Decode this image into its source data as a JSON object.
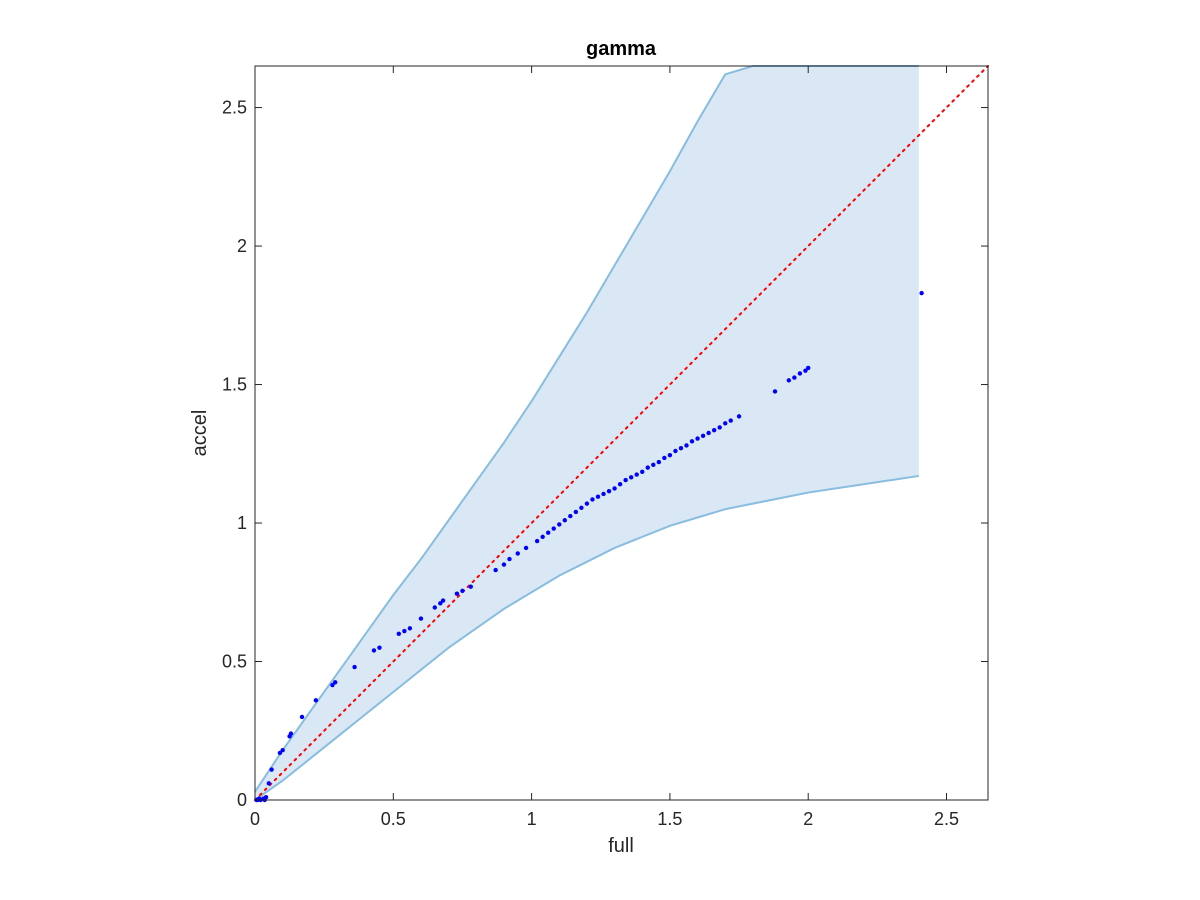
{
  "chart_data": {
    "type": "scatter",
    "title": "gamma",
    "xlabel": "full",
    "ylabel": "accel",
    "xlim": [
      0,
      2.65
    ],
    "ylim": [
      0,
      2.65
    ],
    "xticks": [
      0,
      0.5,
      1,
      1.5,
      2,
      2.5
    ],
    "yticks": [
      0,
      0.5,
      1,
      1.5,
      2,
      2.5
    ],
    "xtick_labels": [
      "0",
      "0.5",
      "1",
      "1.5",
      "2",
      "2.5"
    ],
    "ytick_labels": [
      "0",
      "0.5",
      "1",
      "1.5",
      "2",
      "2.5"
    ],
    "grid": false,
    "box": true,
    "reference_line": {
      "style": "dotted",
      "color": "#ff0000",
      "x": [
        0,
        2.65
      ],
      "y": [
        0,
        2.65
      ]
    },
    "band": {
      "color": "#d9e8f4",
      "edge_color": "#88bde0",
      "x": [
        0,
        0.1,
        0.2,
        0.3,
        0.4,
        0.5,
        0.6,
        0.7,
        0.8,
        0.9,
        1.0,
        1.1,
        1.2,
        1.3,
        1.4,
        1.5,
        1.6,
        1.7,
        1.8,
        1.9,
        2.0,
        2.1,
        2.2,
        2.3,
        2.4
      ],
      "upper": [
        0.03,
        0.18,
        0.32,
        0.46,
        0.6,
        0.74,
        0.87,
        1.01,
        1.15,
        1.29,
        1.44,
        1.6,
        1.76,
        1.93,
        2.1,
        2.27,
        2.45,
        2.62,
        2.65,
        2.65,
        2.65,
        2.65,
        2.65,
        2.65,
        2.65
      ],
      "lower": [
        0.0,
        0.07,
        0.15,
        0.23,
        0.31,
        0.39,
        0.47,
        0.55,
        0.62,
        0.69,
        0.75,
        0.81,
        0.86,
        0.91,
        0.95,
        0.99,
        1.02,
        1.05,
        1.07,
        1.09,
        1.11,
        1.125,
        1.14,
        1.155,
        1.17
      ]
    },
    "series": [
      {
        "color": "#0000ff",
        "x": [
          0.005,
          0.01,
          0.015,
          0.02,
          0.03,
          0.035,
          0.04,
          0.05,
          0.06,
          0.09,
          0.1,
          0.125,
          0.13,
          0.17,
          0.22,
          0.28,
          0.29,
          0.36,
          0.43,
          0.45,
          0.52,
          0.54,
          0.56,
          0.6,
          0.65,
          0.67,
          0.68,
          0.73,
          0.75,
          0.78,
          0.87,
          0.9,
          0.92,
          0.95,
          0.98,
          1.02,
          1.04,
          1.06,
          1.08,
          1.1,
          1.12,
          1.14,
          1.16,
          1.18,
          1.2,
          1.22,
          1.24,
          1.26,
          1.28,
          1.3,
          1.32,
          1.34,
          1.36,
          1.38,
          1.4,
          1.42,
          1.44,
          1.46,
          1.48,
          1.5,
          1.52,
          1.54,
          1.56,
          1.58,
          1.6,
          1.62,
          1.64,
          1.66,
          1.68,
          1.7,
          1.72,
          1.75,
          1.88,
          1.93,
          1.95,
          1.97,
          1.99,
          2.0,
          2.41
        ],
        "y": [
          0.0,
          0.0,
          0.005,
          0.0,
          0.005,
          0.0,
          0.01,
          0.06,
          0.11,
          0.17,
          0.18,
          0.23,
          0.24,
          0.3,
          0.36,
          0.415,
          0.425,
          0.48,
          0.54,
          0.55,
          0.6,
          0.61,
          0.62,
          0.655,
          0.695,
          0.71,
          0.72,
          0.745,
          0.755,
          0.77,
          0.83,
          0.85,
          0.87,
          0.89,
          0.91,
          0.935,
          0.95,
          0.965,
          0.98,
          0.995,
          1.01,
          1.025,
          1.04,
          1.055,
          1.07,
          1.085,
          1.095,
          1.105,
          1.115,
          1.125,
          1.14,
          1.155,
          1.165,
          1.175,
          1.185,
          1.2,
          1.21,
          1.22,
          1.235,
          1.245,
          1.26,
          1.27,
          1.28,
          1.295,
          1.305,
          1.315,
          1.325,
          1.335,
          1.345,
          1.36,
          1.37,
          1.385,
          1.475,
          1.515,
          1.525,
          1.54,
          1.55,
          1.56,
          1.83
        ]
      }
    ]
  }
}
